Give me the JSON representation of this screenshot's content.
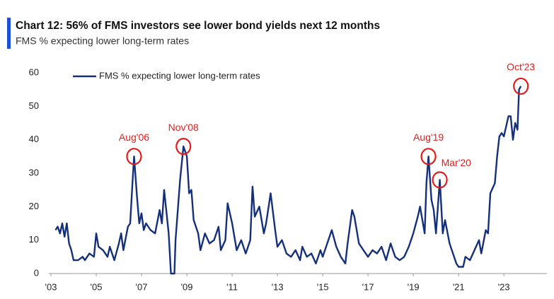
{
  "chart_data": {
    "type": "line",
    "title": "Chart 12: 56% of FMS investors see lower bond yields next 12 months",
    "subtitle": "FMS % expecting lower long-term rates",
    "xlim": [
      2002.9,
      2024.9
    ],
    "xticks": [
      {
        "value": 2003,
        "label": "'03"
      },
      {
        "value": 2005,
        "label": "'05"
      },
      {
        "value": 2007,
        "label": "'07"
      },
      {
        "value": 2009,
        "label": "'09"
      },
      {
        "value": 2011,
        "label": "'11"
      },
      {
        "value": 2013,
        "label": "'13"
      },
      {
        "value": 2015,
        "label": "'15"
      },
      {
        "value": 2017,
        "label": "'17"
      },
      {
        "value": 2019,
        "label": "'19"
      },
      {
        "value": 2021,
        "label": "'21"
      },
      {
        "value": 2023,
        "label": "'23"
      }
    ],
    "ylim": [
      0,
      60
    ],
    "yticks": [
      0,
      10,
      20,
      30,
      40,
      50,
      60
    ],
    "grid": false,
    "legend": "top-left",
    "x": [
      2003.2,
      2003.3,
      2003.4,
      2003.5,
      2003.6,
      2003.7,
      2003.8,
      2003.9,
      2004.0,
      2004.2,
      2004.4,
      2004.5,
      2004.7,
      2004.9,
      2005.0,
      2005.1,
      2005.3,
      2005.5,
      2005.6,
      2005.8,
      2006.0,
      2006.1,
      2006.2,
      2006.4,
      2006.5,
      2006.6,
      2006.67,
      2006.8,
      2006.9,
      2007.0,
      2007.1,
      2007.2,
      2007.4,
      2007.6,
      2007.8,
      2007.9,
      2008.0,
      2008.2,
      2008.3,
      2008.45,
      2008.5,
      2008.7,
      2008.85,
      2009.0,
      2009.1,
      2009.2,
      2009.3,
      2009.5,
      2009.6,
      2009.8,
      2010.0,
      2010.2,
      2010.4,
      2010.5,
      2010.7,
      2010.8,
      2011.0,
      2011.2,
      2011.4,
      2011.6,
      2011.8,
      2011.9,
      2012.0,
      2012.2,
      2012.4,
      2012.5,
      2012.7,
      2012.9,
      2013.0,
      2013.2,
      2013.4,
      2013.6,
      2013.8,
      2014.0,
      2014.1,
      2014.3,
      2014.5,
      2014.7,
      2014.9,
      2015.0,
      2015.2,
      2015.4,
      2015.6,
      2015.8,
      2016.0,
      2016.1,
      2016.3,
      2016.4,
      2016.6,
      2016.8,
      2017.0,
      2017.2,
      2017.4,
      2017.6,
      2017.8,
      2018.0,
      2018.2,
      2018.4,
      2018.6,
      2018.8,
      2019.0,
      2019.2,
      2019.3,
      2019.5,
      2019.58,
      2019.67,
      2019.8,
      2019.9,
      2020.0,
      2020.17,
      2020.3,
      2020.4,
      2020.6,
      2020.7,
      2020.9,
      2021.0,
      2021.2,
      2021.3,
      2021.5,
      2021.7,
      2021.9,
      2022.0,
      2022.2,
      2022.3,
      2022.4,
      2022.6,
      2022.7,
      2022.8,
      2022.9,
      2023.0,
      2023.2,
      2023.3,
      2023.4,
      2023.5,
      2023.6,
      2023.67,
      2023.75
    ],
    "series": [
      {
        "name": "FMS % expecting lower long-term rates",
        "color": "#15307a",
        "values": [
          13,
          14,
          12,
          15,
          11,
          15,
          9,
          7,
          4,
          4,
          5,
          4,
          6,
          5,
          12,
          8,
          7,
          5,
          8,
          4,
          9,
          12,
          7,
          14,
          15,
          27,
          35,
          23,
          15,
          18,
          13,
          15,
          13,
          12,
          19,
          15,
          25,
          12,
          0,
          0,
          10,
          28,
          38,
          35,
          24,
          25,
          16,
          12,
          7,
          12,
          9,
          10,
          14,
          7,
          10,
          21,
          15,
          7,
          10,
          6,
          10,
          26,
          17,
          20,
          12,
          15,
          24,
          13,
          8,
          10,
          6,
          5,
          7,
          4,
          8,
          5,
          6,
          3,
          7,
          5,
          9,
          13,
          8,
          5,
          3,
          9,
          19,
          17,
          9,
          7,
          5,
          7,
          6,
          8,
          4,
          9,
          5,
          4,
          5,
          8,
          12,
          17,
          20,
          12,
          27,
          35,
          22,
          19,
          12,
          28,
          12,
          16,
          9,
          7,
          3,
          2,
          2,
          5,
          4,
          7,
          10,
          6,
          13,
          12,
          24,
          27,
          35,
          41,
          42,
          41,
          47,
          47,
          40,
          45,
          43,
          55,
          56
        ]
      }
    ],
    "annotations": [
      {
        "text": "Aug'06",
        "x": 2006.67,
        "y": 35
      },
      {
        "text": "Nov'08",
        "x": 2008.85,
        "y": 38
      },
      {
        "text": "Aug'19",
        "x": 2019.67,
        "y": 35
      },
      {
        "text": "Mar'20",
        "x": 2020.17,
        "y": 28
      },
      {
        "text": "Oct'23",
        "x": 2023.75,
        "y": 56
      }
    ]
  }
}
